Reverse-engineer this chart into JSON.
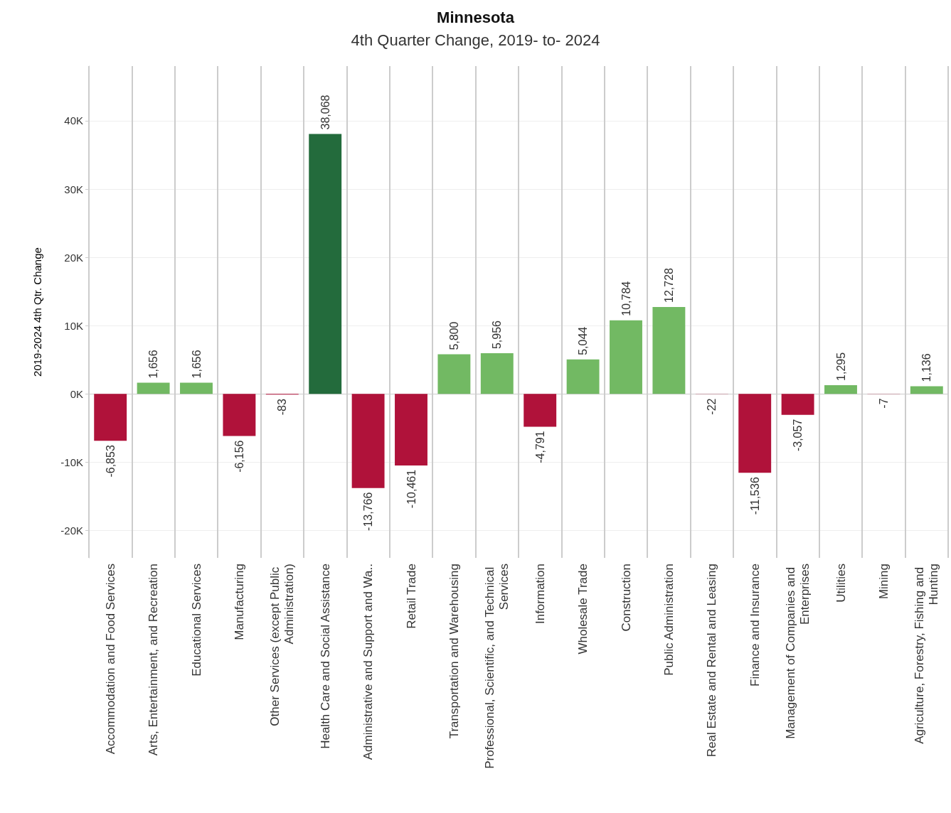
{
  "chart_data": {
    "type": "bar",
    "title": "Minnesota",
    "subtitle": "4th Quarter Change, 2019- to- 2024",
    "ylabel": "2019-2024 4th Qtr. Change",
    "categories": [
      "Accommodation and Food Services",
      "Arts, Entertainment, and Recreation",
      "Educational Services",
      "Manufacturing",
      "Other Services (except Public Administration)",
      "Health Care and Social Assistance",
      "Administrative and Support and Wa..",
      "Retail Trade",
      "Transportation and Warehousing",
      "Professional, Scientific, and Technical Services",
      "Information",
      "Wholesale Trade",
      "Construction",
      "Public Administration",
      "Real Estate and Rental and Leasing",
      "Finance and Insurance",
      "Management of Companies and Enterprises",
      "Utilities",
      "Mining",
      "Agriculture, Forestry, Fishing and Hunting"
    ],
    "values": [
      -6853,
      1656,
      1656,
      -6156,
      -83,
      38068,
      -13766,
      -10461,
      5800,
      5956,
      -4791,
      5044,
      10784,
      12728,
      -22,
      -11536,
      -3057,
      1295,
      -7,
      1136
    ],
    "colors": [
      "#b0123a",
      "#72b963",
      "#72b963",
      "#b0123a",
      "#b0123a",
      "#236b3c",
      "#b0123a",
      "#b0123a",
      "#72b963",
      "#72b963",
      "#b0123a",
      "#72b963",
      "#72b963",
      "#72b963",
      "#b0123a",
      "#b0123a",
      "#b0123a",
      "#72b963",
      "#b0123a",
      "#72b963"
    ],
    "ylim": [
      -24000,
      48000
    ],
    "yticks": [
      {
        "value": -20000,
        "label": "-20K"
      },
      {
        "value": -10000,
        "label": "-10K"
      },
      {
        "value": 0,
        "label": "0K"
      },
      {
        "value": 10000,
        "label": "10K"
      },
      {
        "value": 20000,
        "label": "20K"
      },
      {
        "value": 30000,
        "label": "30K"
      },
      {
        "value": 40000,
        "label": "40K"
      }
    ],
    "value_labels": [
      "-6,853",
      "1,656",
      "1,656",
      "-6,156",
      "-83",
      "38,068",
      "-13,766",
      "-10,461",
      "5,800",
      "5,956",
      "-4,791",
      "5,044",
      "10,784",
      "12,728",
      "-22",
      "-11,536",
      "-3,057",
      "1,295",
      "-7",
      "1,136"
    ],
    "grid": true
  }
}
